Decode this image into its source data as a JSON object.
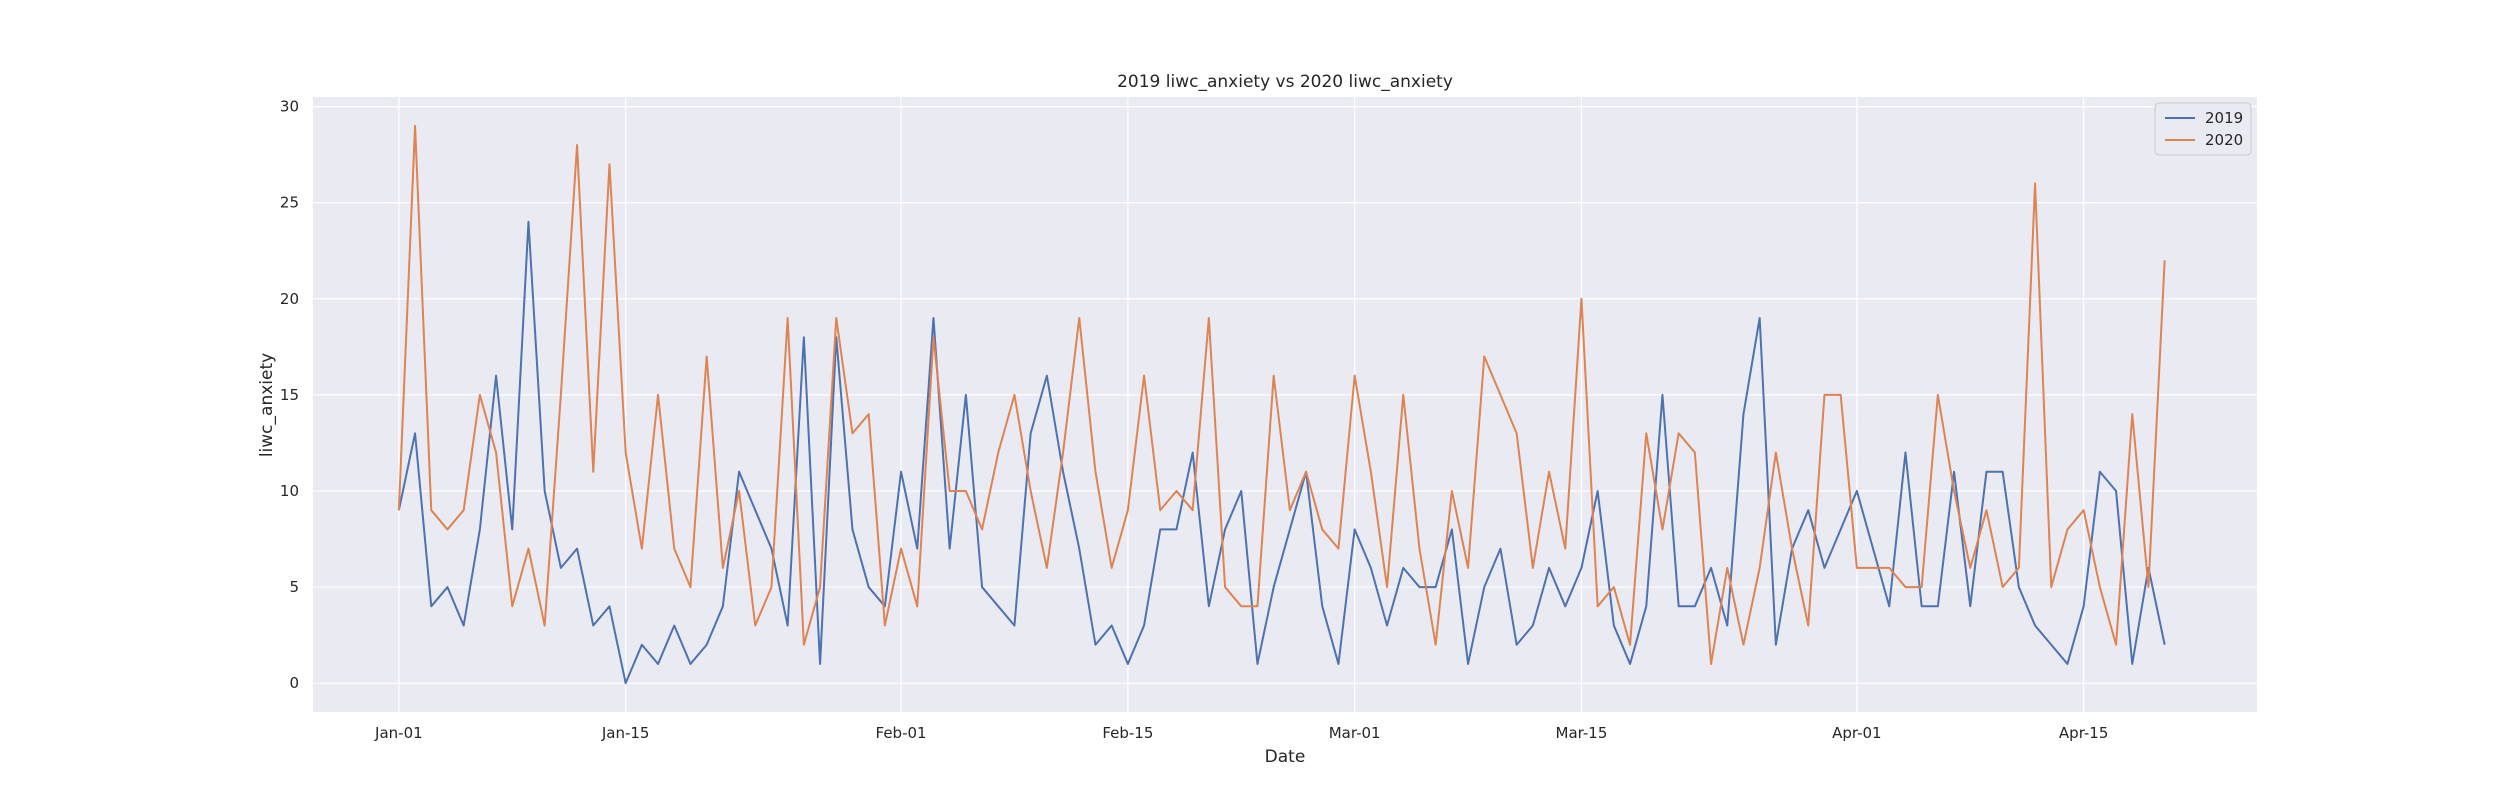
{
  "chart_data": {
    "type": "line",
    "title": "2019 liwc_anxiety vs 2020 liwc_anxiety",
    "xlabel": "Date",
    "ylabel": "liwc_anxiety",
    "x_start_label": "Jan-01",
    "x_ticks": [
      {
        "day": 0,
        "label": "Jan-01"
      },
      {
        "day": 14,
        "label": "Jan-15"
      },
      {
        "day": 31,
        "label": "Feb-01"
      },
      {
        "day": 45,
        "label": "Feb-15"
      },
      {
        "day": 59,
        "label": "Mar-01"
      },
      {
        "day": 73,
        "label": "Mar-15"
      },
      {
        "day": 90,
        "label": "Apr-01"
      },
      {
        "day": 104,
        "label": "Apr-15"
      }
    ],
    "x_range_days": [
      -5.3,
      114.7
    ],
    "ylim": [
      -1.5,
      30.5
    ],
    "y_ticks": [
      0,
      5,
      10,
      15,
      20,
      25,
      30
    ],
    "grid": true,
    "legend_position": "top-right",
    "background": "#eaeaf2",
    "series": [
      {
        "name": "2019",
        "color": "#4c72b0",
        "values": [
          9,
          13,
          4,
          5,
          3,
          8,
          16,
          8,
          24,
          10,
          6,
          7,
          3,
          4,
          0,
          2,
          1,
          3,
          1,
          2,
          4,
          11,
          9,
          7,
          3,
          18,
          1,
          18,
          8,
          5,
          4,
          11,
          7,
          19,
          7,
          15,
          5,
          4,
          3,
          13,
          16,
          11,
          7,
          2,
          3,
          1,
          3,
          8,
          8,
          12,
          4,
          8,
          10,
          1,
          5,
          8,
          11,
          4,
          1,
          8,
          6,
          3,
          6,
          5,
          5,
          8,
          1,
          5,
          7,
          2,
          3,
          6,
          4,
          6,
          10,
          3,
          1,
          4,
          15,
          4,
          4,
          6,
          3,
          14,
          19,
          2,
          7,
          9,
          6,
          8,
          10,
          7,
          4,
          12,
          4,
          4,
          11,
          4,
          11,
          11,
          5,
          3,
          2,
          1,
          4,
          11,
          10,
          1,
          6,
          2
        ]
      },
      {
        "name": "2020",
        "color": "#dd8452",
        "values": [
          9,
          29,
          9,
          8,
          9,
          15,
          12,
          4,
          7,
          3,
          15,
          28,
          11,
          27,
          12,
          7,
          15,
          7,
          5,
          17,
          6,
          10,
          3,
          5,
          19,
          2,
          5,
          19,
          13,
          14,
          3,
          7,
          4,
          18,
          10,
          10,
          8,
          12,
          15,
          10,
          6,
          12,
          19,
          11,
          6,
          9,
          16,
          9,
          10,
          9,
          19,
          5,
          4,
          4,
          16,
          9,
          11,
          8,
          7,
          16,
          11,
          5,
          15,
          7,
          2,
          10,
          6,
          17,
          15,
          13,
          6,
          11,
          7,
          20,
          4,
          5,
          2,
          13,
          8,
          13,
          12,
          1,
          6,
          2,
          6,
          12,
          7,
          3,
          15,
          15,
          6,
          6,
          6,
          5,
          5,
          15,
          10,
          6,
          9,
          5,
          6,
          26,
          5,
          8,
          9,
          5,
          2,
          14,
          5,
          22
        ]
      }
    ]
  }
}
